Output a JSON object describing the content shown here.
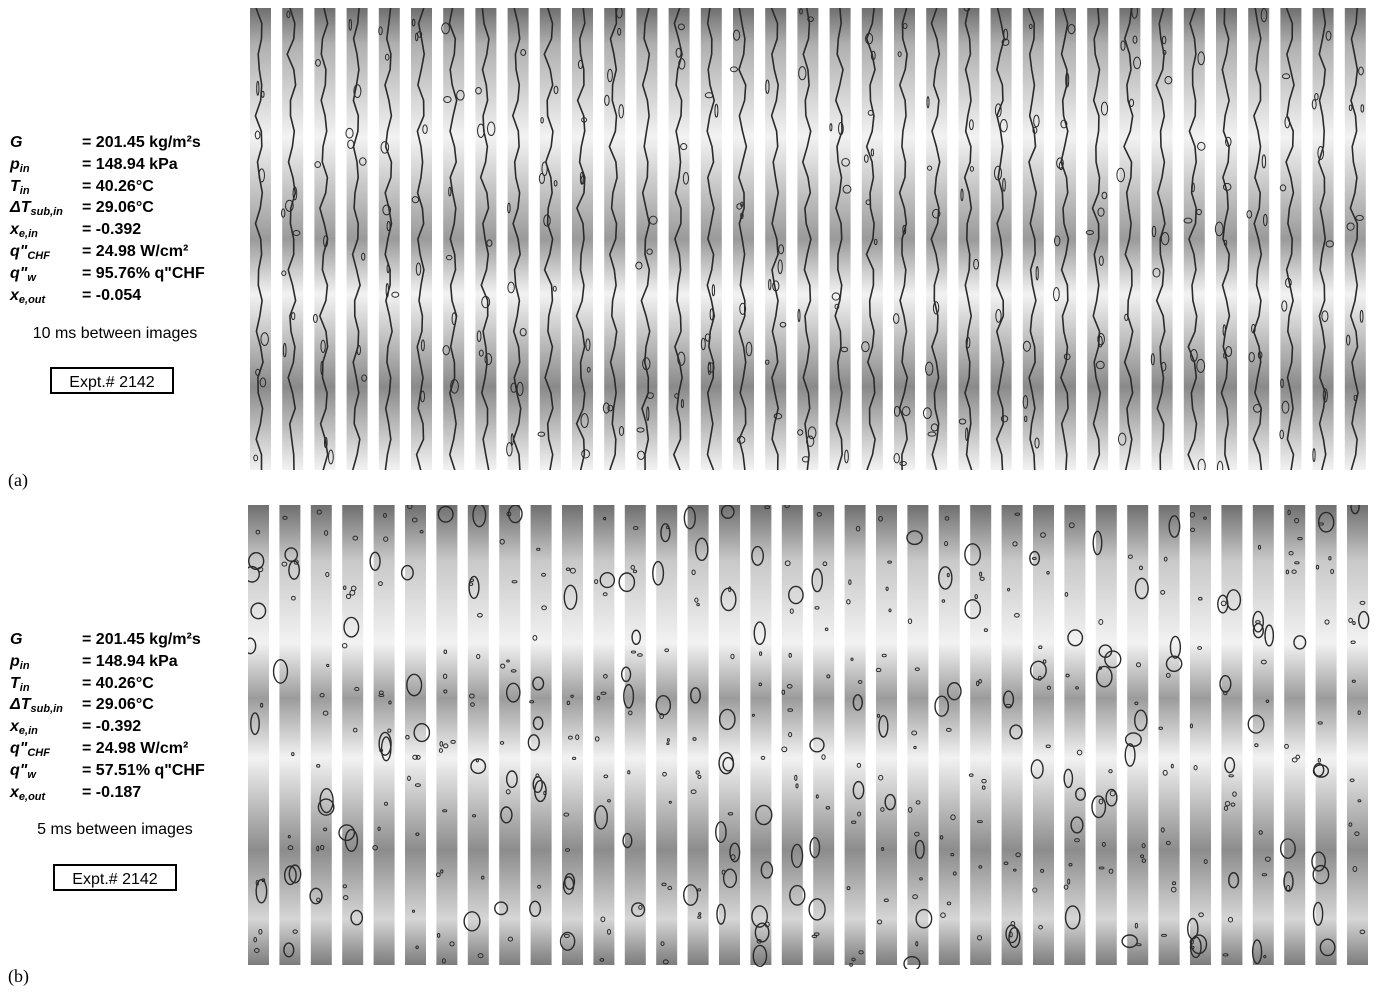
{
  "panels": [
    {
      "label": "(a)",
      "params": [
        {
          "sym": "G",
          "sub": "",
          "val": "= 201.45 kg/m²s"
        },
        {
          "sym": "p",
          "sub": "in",
          "val": "= 148.94 kPa"
        },
        {
          "sym": "T",
          "sub": "in",
          "val": "= 40.26°C"
        },
        {
          "sym": "ΔT",
          "sub": "sub,in",
          "val": "= 29.06°C"
        },
        {
          "sym": "x",
          "sub": "e,in",
          "val": "= -0.392"
        },
        {
          "sym": "q\"",
          "sub": "CHF",
          "val": "= 24.98 W/cm²"
        },
        {
          "sym": "q\"",
          "sub": "w",
          "val": "= 95.76% q\"CHF"
        },
        {
          "sym": "x",
          "sub": "e,out",
          "val": "= -0.054"
        }
      ],
      "interval": "10 ms between images",
      "expt": "Expt.# 2142",
      "frame_count": 35
    },
    {
      "label": "(b)",
      "params": [
        {
          "sym": "G",
          "sub": "",
          "val": "= 201.45 kg/m²s"
        },
        {
          "sym": "p",
          "sub": "in",
          "val": "= 148.94 kPa"
        },
        {
          "sym": "T",
          "sub": "in",
          "val": "= 40.26°C"
        },
        {
          "sym": "ΔT",
          "sub": "sub,in",
          "val": "= 29.06°C"
        },
        {
          "sym": "x",
          "sub": "e,in",
          "val": "= -0.392"
        },
        {
          "sym": "q\"",
          "sub": "CHF",
          "val": "= 24.98 W/cm²"
        },
        {
          "sym": "q\"",
          "sub": "w",
          "val": "= 57.51% q\"CHF"
        },
        {
          "sym": "x",
          "sub": "e,out",
          "val": "= -0.187"
        }
      ],
      "interval": "5 ms between images",
      "expt": "Expt.# 2142",
      "frame_count": 36
    }
  ],
  "colors": {
    "frame_dark": "#6f6f6f",
    "frame_light": "#f2f2f2",
    "vapor": "#2a2a2a"
  }
}
